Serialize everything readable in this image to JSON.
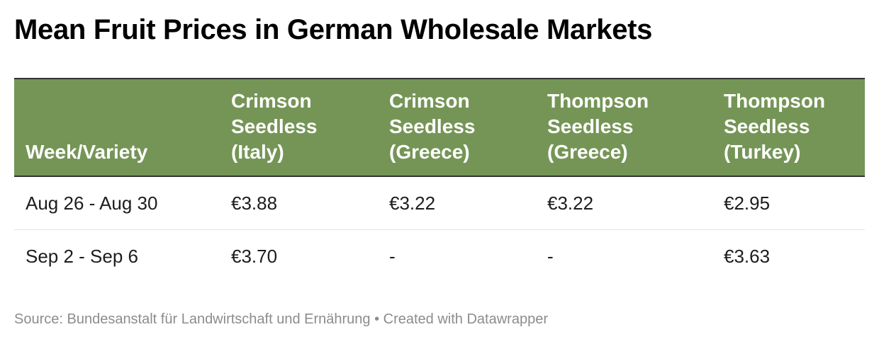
{
  "chart_data": {
    "type": "table",
    "title": "Mean Fruit Prices in German Wholesale Markets",
    "columns": [
      [
        "Week/Variety"
      ],
      [
        "Crimson",
        "Seedless",
        "(Italy)"
      ],
      [
        "Crimson",
        "Seedless",
        "(Greece)"
      ],
      [
        "Thompson",
        "Seedless",
        "(Greece)"
      ],
      [
        "Thompson",
        "Seedless",
        "(Turkey)"
      ]
    ],
    "rows": [
      [
        "Aug 26 - Aug 30",
        "€3.88",
        "€3.22",
        "€3.22",
        "€2.95"
      ],
      [
        "Sep 2 - Sep 6",
        "€3.70",
        "-",
        "-",
        "€3.63"
      ]
    ],
    "source": "Source: Bundesanstalt für Landwirtschaft und Ernährung • Created with Datawrapper"
  },
  "colors": {
    "header_bg": "#759556",
    "header_text": "#ffffff",
    "source_text": "#8c8c8c"
  }
}
